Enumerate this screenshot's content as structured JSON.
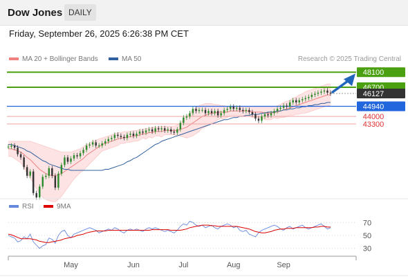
{
  "header": {
    "instrument": "Dow Jones",
    "timeframe": "DAILY"
  },
  "datetime": "Friday, September 26, 2025 6:26:38 PM CET",
  "legend": {
    "ma20": {
      "label": "MA 20 + Bollinger Bands",
      "color": "#f08080"
    },
    "ma50": {
      "label": "MA 50",
      "color": "#3060a0"
    },
    "rsi": {
      "label": "RSI",
      "color": "#6688dd"
    },
    "nine_ma": {
      "label": "9MA",
      "color": "#dd0000"
    }
  },
  "credit": "Research © 2025 Trading Central",
  "levels": [
    {
      "value": "48100",
      "kind": "resistance",
      "color": "#4aa010"
    },
    {
      "value": "46700",
      "kind": "resistance",
      "color": "#4aa010"
    },
    {
      "value": "46127",
      "kind": "last",
      "color": "#333333"
    },
    {
      "value": "44940",
      "kind": "pivot",
      "color": "#2266dd"
    },
    {
      "value": "44000",
      "kind": "support",
      "color": "#e03030"
    },
    {
      "value": "43300",
      "kind": "support",
      "color": "#e03030"
    }
  ],
  "chart_data": {
    "type": "candlestick",
    "x_tick_labels": [
      "May",
      "Jun",
      "Jul",
      "Aug",
      "Sep"
    ],
    "price_ylim": [
      36500,
      48500
    ],
    "close": [
      41200,
      41300,
      41100,
      40500,
      40200,
      39300,
      38500,
      38900,
      36900,
      36500,
      37500,
      38400,
      38500,
      39200,
      38500,
      37400,
      38700,
      39500,
      40200,
      39800,
      40100,
      40400,
      40300,
      40600,
      40900,
      41300,
      41400,
      41600,
      41300,
      41300,
      41500,
      41700,
      41900,
      42000,
      42300,
      42200,
      42100,
      42000,
      42300,
      42400,
      42200,
      42400,
      42600,
      42500,
      42700,
      42800,
      42600,
      42900,
      42800,
      42900,
      42700,
      42800,
      42600,
      42500,
      42800,
      43400,
      43900,
      44000,
      44300,
      44700,
      44500,
      44600,
      44600,
      44300,
      44500,
      44300,
      44500,
      44100,
      44300,
      44600,
      44700,
      44900,
      44700,
      44800,
      44600,
      44500,
      44600,
      44400,
      44200,
      43800,
      43600,
      44000,
      44200,
      44100,
      44300,
      44500,
      44700,
      44800,
      45000,
      44900,
      45300,
      45500,
      45300,
      45500,
      45600,
      45700,
      45800,
      46000,
      46100,
      46200,
      46300,
      46400,
      46200,
      46127
    ],
    "ma20": [
      41000,
      41000,
      40900,
      40800,
      40700,
      40500,
      40200,
      40000,
      39700,
      39400,
      39100,
      38900,
      38700,
      38600,
      38500,
      38500,
      38600,
      38700,
      38900,
      39100,
      39300,
      39500,
      39700,
      39900,
      40100,
      40400,
      40600,
      40800,
      41000,
      41200,
      41400,
      41500,
      41600,
      41700,
      41800,
      41900,
      42000,
      42000,
      42100,
      42100,
      42200,
      42200,
      42300,
      42400,
      42400,
      42500,
      42500,
      42600,
      42600,
      42600,
      42700,
      42700,
      42700,
      42700,
      42700,
      42800,
      42900,
      43000,
      43200,
      43400,
      43600,
      43800,
      44000,
      44100,
      44200,
      44300,
      44300,
      44400,
      44400,
      44400,
      44400,
      44500,
      44500,
      44500,
      44500,
      44500,
      44500,
      44500,
      44400,
      44400,
      44400,
      44400,
      44300,
      44300,
      44300,
      44400,
      44400,
      44500,
      44600,
      44700,
      44800,
      44900,
      45000,
      45100,
      45200,
      45300,
      45400,
      45500,
      45600,
      45700,
      45800,
      45900,
      46000,
      46000
    ],
    "bb_upper": [
      41700,
      41700,
      41700,
      41700,
      41700,
      41700,
      41700,
      41700,
      41600,
      41500,
      41400,
      41300,
      41200,
      41100,
      41000,
      40900,
      40800,
      40700,
      40700,
      40700,
      40700,
      40800,
      40900,
      41000,
      41200,
      41400,
      41500,
      41700,
      41800,
      41900,
      42000,
      42100,
      42200,
      42300,
      42400,
      42500,
      42500,
      42600,
      42600,
      42600,
      42700,
      42700,
      42800,
      42800,
      42900,
      42900,
      43000,
      43000,
      43000,
      43100,
      43100,
      43100,
      43100,
      43100,
      43200,
      43400,
      43700,
      44000,
      44300,
      44600,
      44800,
      45000,
      45100,
      45200,
      45200,
      45200,
      45100,
      45100,
      45000,
      45000,
      44900,
      44900,
      44900,
      44900,
      44900,
      44900,
      44900,
      44900,
      44900,
      44900,
      44900,
      44900,
      44900,
      44900,
      44900,
      44900,
      45000,
      45100,
      45300,
      45400,
      45500,
      45700,
      45800,
      46000,
      46100,
      46300,
      46400,
      46500,
      46600,
      46700,
      46800,
      46900,
      47000,
      47000
    ],
    "bb_lower": [
      40300,
      40300,
      40100,
      39900,
      39700,
      39300,
      38700,
      38300,
      37800,
      37300,
      36800,
      36500,
      36300,
      36200,
      36100,
      36100,
      36300,
      36600,
      37000,
      37400,
      37800,
      38200,
      38500,
      38800,
      39000,
      39300,
      39600,
      39900,
      40200,
      40500,
      40800,
      40900,
      41000,
      41100,
      41200,
      41300,
      41500,
      41500,
      41600,
      41600,
      41700,
      41700,
      41800,
      42000,
      41900,
      42100,
      42000,
      42200,
      42200,
      42100,
      42300,
      42300,
      42300,
      42300,
      42200,
      42200,
      42100,
      42000,
      42100,
      42200,
      42400,
      42600,
      42900,
      43000,
      43200,
      43400,
      43500,
      43700,
      43800,
      43800,
      43900,
      44100,
      44100,
      44100,
      44100,
      44100,
      44100,
      44100,
      43900,
      43900,
      43900,
      43900,
      43700,
      43700,
      43700,
      43900,
      43800,
      43900,
      43900,
      44000,
      44100,
      44100,
      44200,
      44200,
      44300,
      44300,
      44400,
      44500,
      44600,
      44700,
      44800,
      44900,
      45000,
      45000
    ],
    "ma50": [
      41400,
      41400,
      41300,
      41200,
      41100,
      41000,
      40800,
      40700,
      40500,
      40300,
      40100,
      39900,
      39800,
      39600,
      39500,
      39400,
      39300,
      39200,
      39100,
      39100,
      39000,
      39000,
      39000,
      39000,
      39000,
      39000,
      39000,
      39000,
      39000,
      39000,
      39000,
      39100,
      39100,
      39200,
      39300,
      39400,
      39500,
      39600,
      39800,
      39900,
      40100,
      40200,
      40400,
      40600,
      40800,
      41000,
      41200,
      41400,
      41500,
      41700,
      41800,
      41900,
      42000,
      42100,
      42200,
      42300,
      42400,
      42500,
      42600,
      42700,
      42800,
      42900,
      43000,
      43100,
      43200,
      43300,
      43400,
      43500,
      43600,
      43700,
      43700,
      43800,
      43900,
      43900,
      44000,
      44000,
      44100,
      44100,
      44200,
      44200,
      44200,
      44300,
      44300,
      44400,
      44400,
      44400,
      44500,
      44500,
      44600,
      44600,
      44700,
      44700,
      44800,
      44800,
      44900,
      44900,
      45000,
      45000,
      45100,
      45100,
      45200,
      45200,
      45300,
      45300
    ],
    "rsi_ylim": [
      20,
      80
    ],
    "rsi_ticks": [
      "70",
      "50",
      "30"
    ],
    "rsi": [
      50,
      48,
      46,
      40,
      42,
      48,
      45,
      52,
      40,
      35,
      30,
      34,
      36,
      46,
      44,
      38,
      50,
      56,
      58,
      50,
      46,
      52,
      54,
      56,
      58,
      60,
      62,
      60,
      58,
      54,
      56,
      58,
      60,
      58,
      62,
      60,
      56,
      54,
      58,
      60,
      58,
      60,
      58,
      56,
      60,
      62,
      60,
      62,
      60,
      58,
      56,
      58,
      56,
      54,
      58,
      64,
      68,
      66,
      72,
      70,
      66,
      64,
      66,
      62,
      64,
      66,
      62,
      60,
      64,
      66,
      68,
      66,
      62,
      64,
      58,
      56,
      58,
      52,
      50,
      48,
      54,
      58,
      60,
      62,
      64,
      66,
      64,
      60,
      58,
      62,
      64,
      60,
      62,
      64,
      66,
      62,
      60,
      62,
      64,
      66,
      68,
      64,
      60,
      62
    ],
    "rsi_ma": [
      52,
      51,
      49,
      47,
      45,
      45,
      45,
      45,
      44,
      43,
      41,
      40,
      39,
      39,
      40,
      41,
      42,
      43,
      45,
      46,
      47,
      48,
      50,
      51,
      52,
      54,
      55,
      56,
      57,
      57,
      57,
      57,
      58,
      58,
      58,
      58,
      58,
      58,
      58,
      58,
      58,
      58,
      58,
      58,
      58,
      58,
      59,
      59,
      59,
      59,
      59,
      59,
      58,
      58,
      58,
      58,
      59,
      60,
      62,
      63,
      64,
      65,
      66,
      66,
      66,
      65,
      65,
      64,
      64,
      64,
      64,
      64,
      64,
      64,
      63,
      62,
      61,
      60,
      58,
      56,
      55,
      54,
      54,
      55,
      56,
      58,
      59,
      60,
      60,
      61,
      61,
      61,
      62,
      62,
      62,
      62,
      62,
      62,
      63,
      63,
      64,
      64,
      63,
      63
    ]
  }
}
